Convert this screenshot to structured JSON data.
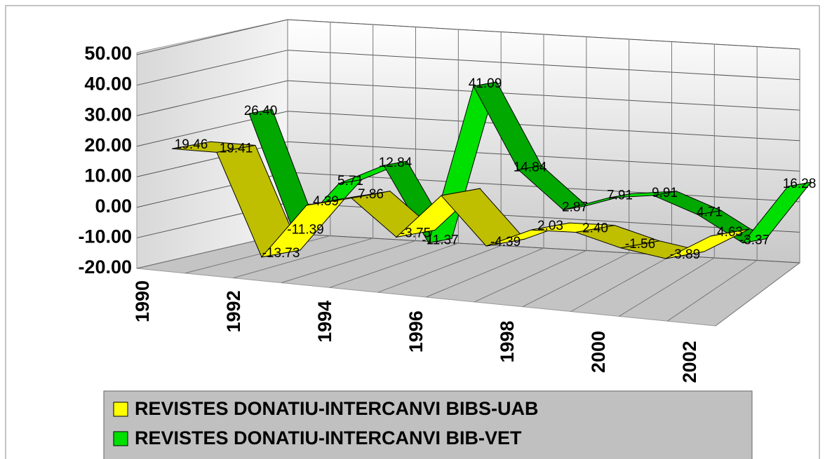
{
  "chart_data": {
    "type": "line3d",
    "categories": [
      "1990",
      null,
      "1992",
      null,
      "1994",
      null,
      "1996",
      null,
      "1998",
      null,
      "2000",
      null,
      "2002"
    ],
    "series": [
      {
        "name": "REVISTES DONATIU-INTERCANVI BIBS-UAB",
        "color": "#ffff00",
        "values": [
          19.46,
          19.41,
          -13.73,
          4.39,
          7.86,
          -3.75,
          11,
          -4.39,
          2.03,
          2.4,
          -1.56,
          -3.89,
          4.63
        ],
        "value_labels": [
          "19.46",
          "19.41",
          "-13.73",
          "4.39",
          "7.86",
          "-3.75",
          null,
          "-4.39",
          "2.03",
          "2.40",
          "-1.56",
          "-3.89",
          "4.63"
        ]
      },
      {
        "name": "REVISTES DONATIU-INTERCANVI BIB-VET",
        "color": "#00e000",
        "values": [
          26.4,
          -11.39,
          5.71,
          12.84,
          -11.37,
          41.09,
          14.84,
          2.87,
          7.91,
          9.91,
          4.71,
          -3.37,
          16.28
        ],
        "value_labels": [
          "26.40",
          "-11.39",
          "5.71",
          "12.84",
          "-11.37",
          "41.09",
          "14.84",
          "2.87",
          "7.91",
          "9.91",
          "4.71",
          "-3.37",
          "16.28"
        ]
      }
    ],
    "ylim": [
      -20,
      50
    ],
    "yticks": [
      {
        "value": -20,
        "label": "-20.00"
      },
      {
        "value": -10,
        "label": "-10.00"
      },
      {
        "value": 0,
        "label": "0.00"
      },
      {
        "value": 10,
        "label": "10.00"
      },
      {
        "value": 20,
        "label": "20.00"
      },
      {
        "value": 30,
        "label": "30.00"
      },
      {
        "value": 40,
        "label": "40.00"
      },
      {
        "value": 50,
        "label": "50.00"
      }
    ],
    "grid": true,
    "legend": "bottom"
  }
}
